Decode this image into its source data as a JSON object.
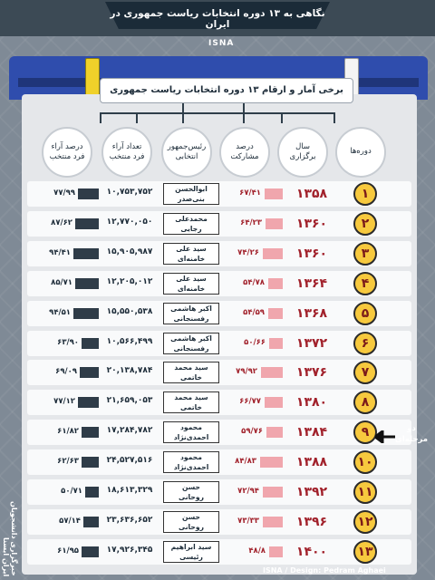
{
  "header": {
    "title": "نگاهی به ۱۳ دوره انتخابات ریاست جمهوری در ایران",
    "agency": "ISNA"
  },
  "subtitle": "برخی آمار و ارقام ۱۳ دوره انتخابات ریاست جمهوری",
  "columns": {
    "period": "دوره‌ها",
    "year": "سال\nبرگزاری",
    "participation": "درصد\nمشارکت",
    "president": "رئیس‌جمهور\nانتخابی",
    "votes": "تعداد آراء\nفرد منتخب",
    "vote_pct": "درصد آراء\nفرد منتخب"
  },
  "rows": [
    {
      "n": "۱",
      "year": "۱۳۵۸",
      "part": "۶۷/۴۱",
      "part_val": 67.41,
      "pres": "ابوالحسن\nبنی‌صدر",
      "votes": "۱۰,۷۵۳,۷۵۲",
      "pct": "۷۷/۹۹",
      "pct_val": 77.99
    },
    {
      "n": "۲",
      "year": "۱۳۶۰",
      "part": "۶۴/۲۳",
      "part_val": 64.23,
      "pres": "محمدعلی\nرجایی",
      "votes": "۱۲,۷۷۰,۰۵۰",
      "pct": "۸۷/۶۲",
      "pct_val": 87.62
    },
    {
      "n": "۳",
      "year": "۱۳۶۰",
      "part": "۷۴/۲۶",
      "part_val": 74.26,
      "pres": "سید علی\nخامنه‌ای",
      "votes": "۱۵,۹۰۵,۹۸۷",
      "pct": "۹۴/۴۱",
      "pct_val": 94.41
    },
    {
      "n": "۴",
      "year": "۱۳۶۴",
      "part": "۵۴/۷۸",
      "part_val": 54.78,
      "pres": "سید علی\nخامنه‌ای",
      "votes": "۱۲,۲۰۵,۰۱۲",
      "pct": "۸۵/۷۱",
      "pct_val": 85.71
    },
    {
      "n": "۵",
      "year": "۱۳۶۸",
      "part": "۵۴/۵۹",
      "part_val": 54.59,
      "pres": "اکبر هاشمی\nرفسنجانی",
      "votes": "۱۵,۵۵۰,۵۳۸",
      "pct": "۹۴/۵۱",
      "pct_val": 94.51
    },
    {
      "n": "۶",
      "year": "۱۳۷۲",
      "part": "۵۰/۶۶",
      "part_val": 50.66,
      "pres": "اکبر هاشمی\nرفسنجانی",
      "votes": "۱۰,۵۶۶,۴۹۹",
      "pct": "۶۳/۹۰",
      "pct_val": 63.9
    },
    {
      "n": "۷",
      "year": "۱۳۷۶",
      "part": "۷۹/۹۲",
      "part_val": 79.92,
      "pres": "سید محمد\nخاتمی",
      "votes": "۲۰,۱۳۸,۷۸۴",
      "pct": "۶۹/۰۹",
      "pct_val": 69.09
    },
    {
      "n": "۸",
      "year": "۱۳۸۰",
      "part": "۶۶/۷۷",
      "part_val": 66.77,
      "pres": "سید محمد\nخاتمی",
      "votes": "۲۱,۶۵۹,۰۵۳",
      "pct": "۷۷/۱۲",
      "pct_val": 77.12
    },
    {
      "n": "۹",
      "year": "۱۳۸۴",
      "part": "۵۹/۷۶",
      "part_val": 59.76,
      "pres": "محمود\nاحمدی‌نژاد",
      "votes": "۱۷,۲۸۴,۷۸۲",
      "pct": "۶۱/۸۲",
      "pct_val": 61.82
    },
    {
      "n": "۱۰",
      "year": "۱۳۸۸",
      "part": "۸۴/۸۳",
      "part_val": 84.83,
      "pres": "محمود\nاحمدی‌نژاد",
      "votes": "۲۴,۵۲۷,۵۱۶",
      "pct": "۶۲/۶۳",
      "pct_val": 62.63
    },
    {
      "n": "۱۱",
      "year": "۱۳۹۲",
      "part": "۷۲/۹۴",
      "part_val": 72.94,
      "pres": "حسن\nروحانی",
      "votes": "۱۸,۶۱۳,۳۲۹",
      "pct": "۵۰/۷۱",
      "pct_val": 50.71
    },
    {
      "n": "۱۲",
      "year": "۱۳۹۶",
      "part": "۷۳/۳۳",
      "part_val": 73.33,
      "pres": "حسن\nروحانی",
      "votes": "۲۳,۶۳۶,۶۵۲",
      "pct": "۵۷/۱۴",
      "pct_val": 57.14
    },
    {
      "n": "۱۳",
      "year": "۱۴۰۰",
      "part": "۴۸/۸",
      "part_val": 48.8,
      "pres": "سید ابراهیم\nرئیسی",
      "votes": "۱۷,۹۲۶,۳۴۵",
      "pct": "۶۱/۹۵",
      "pct_val": 61.95
    }
  ],
  "note": "دو\nمرحله‌ای",
  "credit": "ISNA / Design: Pedram Aghaei",
  "side_logo": "خبرگزاری دانشجویان ایران ایسنا",
  "colors": {
    "year": "#a1212b",
    "participation_bar": "#f0a6ad",
    "vote_bar": "#2f3c48",
    "number_badge": "#f7c93e",
    "ballot_box": "#2f4dad"
  }
}
